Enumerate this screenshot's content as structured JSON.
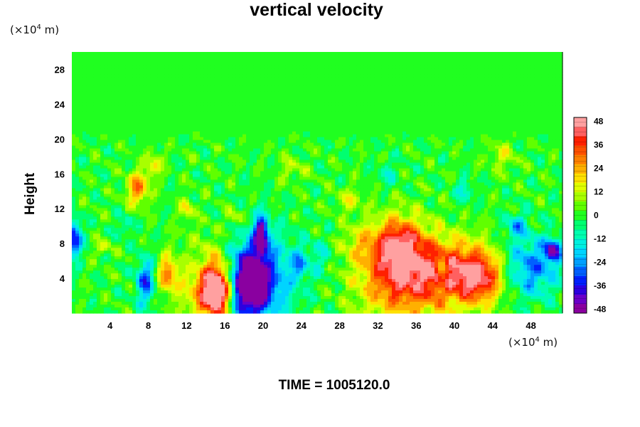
{
  "chart_data": {
    "type": "heatmap",
    "title": "vertical velocity",
    "ylabel": "Height",
    "xlabel": "",
    "y_unit_label": "(×10",
    "x_unit_label": "(×10",
    "unit_exp": "4",
    "unit_m": " m)",
    "footer": "TIME = 1005120.0",
    "xlim": [
      0,
      51.3
    ],
    "ylim": [
      0,
      30
    ],
    "x_ticks": [
      4,
      8,
      12,
      16,
      20,
      24,
      28,
      32,
      36,
      40,
      44,
      48
    ],
    "y_ticks": [
      4,
      8,
      12,
      16,
      20,
      24,
      28
    ],
    "colorbar": {
      "range": [
        -50,
        50
      ],
      "ticks": [
        48,
        36,
        24,
        12,
        0,
        -12,
        -24,
        -36,
        -48
      ],
      "colors": [
        "#8a00a0",
        "#6a00c8",
        "#2c00e0",
        "#0020ff",
        "#0060ff",
        "#00a0ff",
        "#00d4ff",
        "#00f0e0",
        "#00ffb0",
        "#00ff70",
        "#20ff20",
        "#60ff00",
        "#a8ff00",
        "#e0ff00",
        "#ffe000",
        "#ffb000",
        "#ff8000",
        "#ff5000",
        "#ff2000",
        "#ff6060",
        "#ffa0a0"
      ]
    },
    "features": [
      {
        "x": 15.2,
        "y": 2.5,
        "value": 48,
        "sx": 1.1,
        "sy": 2.0
      },
      {
        "x": 14.5,
        "y": 3.5,
        "value": 30,
        "sx": 2.2,
        "sy": 3.2
      },
      {
        "x": 18.4,
        "y": 3.2,
        "value": -48,
        "sx": 1.3,
        "sy": 2.4
      },
      {
        "x": 19.3,
        "y": 4.0,
        "value": -34,
        "sx": 2.6,
        "sy": 3.5
      },
      {
        "x": 19.8,
        "y": 9.0,
        "value": -45,
        "sx": 0.5,
        "sy": 1.5
      },
      {
        "x": 10.0,
        "y": 4.5,
        "value": 28,
        "sx": 0.7,
        "sy": 1.4
      },
      {
        "x": 7.7,
        "y": 3.6,
        "value": -30,
        "sx": 0.7,
        "sy": 1.8
      },
      {
        "x": 13.0,
        "y": 5.5,
        "value": -8,
        "sx": 1.2,
        "sy": 1.6
      },
      {
        "x": 6.9,
        "y": 14.3,
        "value": 30,
        "sx": 0.8,
        "sy": 1.3
      },
      {
        "x": 8.6,
        "y": 17.0,
        "value": 18,
        "sx": 0.6,
        "sy": 1.0
      },
      {
        "x": 12.0,
        "y": 12.0,
        "value": 18,
        "sx": 0.5,
        "sy": 0.8
      },
      {
        "x": 3.3,
        "y": 7.5,
        "value": 14,
        "sx": 0.6,
        "sy": 0.6
      },
      {
        "x": 0.3,
        "y": 8.5,
        "value": -40,
        "sx": 0.5,
        "sy": 1.4
      },
      {
        "x": 34.5,
        "y": 4.2,
        "value": 38,
        "sx": 3.2,
        "sy": 3.5
      },
      {
        "x": 34.2,
        "y": 8.0,
        "value": 30,
        "sx": 1.8,
        "sy": 2.2
      },
      {
        "x": 40.6,
        "y": 4.6,
        "value": 36,
        "sx": 2.8,
        "sy": 2.6
      },
      {
        "x": 38.8,
        "y": 4.5,
        "value": -18,
        "sx": 0.4,
        "sy": 1.2
      },
      {
        "x": 43.0,
        "y": 4.0,
        "value": 22,
        "sx": 1.5,
        "sy": 2.0
      },
      {
        "x": 48.0,
        "y": 5.2,
        "value": -26,
        "sx": 2.0,
        "sy": 2.4
      },
      {
        "x": 50.3,
        "y": 7.2,
        "value": -40,
        "sx": 0.6,
        "sy": 0.9
      },
      {
        "x": 46.5,
        "y": 10.0,
        "value": -20,
        "sx": 0.8,
        "sy": 1.0
      },
      {
        "x": 23.8,
        "y": 5.6,
        "value": -18,
        "sx": 0.6,
        "sy": 1.2
      },
      {
        "x": 26.0,
        "y": 6.5,
        "value": -10,
        "sx": 1.0,
        "sy": 1.6
      },
      {
        "x": 30.0,
        "y": 8.0,
        "value": 10,
        "sx": 1.5,
        "sy": 1.5
      },
      {
        "x": 29.0,
        "y": 13.0,
        "value": 12,
        "sx": 1.0,
        "sy": 1.0
      },
      {
        "x": 41.0,
        "y": 14.0,
        "value": -14,
        "sx": 0.6,
        "sy": 1.0
      },
      {
        "x": 45.0,
        "y": 18.0,
        "value": 12,
        "sx": 1.0,
        "sy": 1.2
      },
      {
        "x": 23.0,
        "y": 16.5,
        "value": 10,
        "sx": 1.0,
        "sy": 1.0
      },
      {
        "x": 33.0,
        "y": 16.0,
        "value": -10,
        "sx": 0.8,
        "sy": 1.0
      },
      {
        "x": 17.0,
        "y": 11.0,
        "value": 14,
        "sx": 0.6,
        "sy": 0.7
      },
      {
        "x": 5.5,
        "y": 10.0,
        "value": -12,
        "sx": 0.6,
        "sy": 0.8
      }
    ]
  }
}
